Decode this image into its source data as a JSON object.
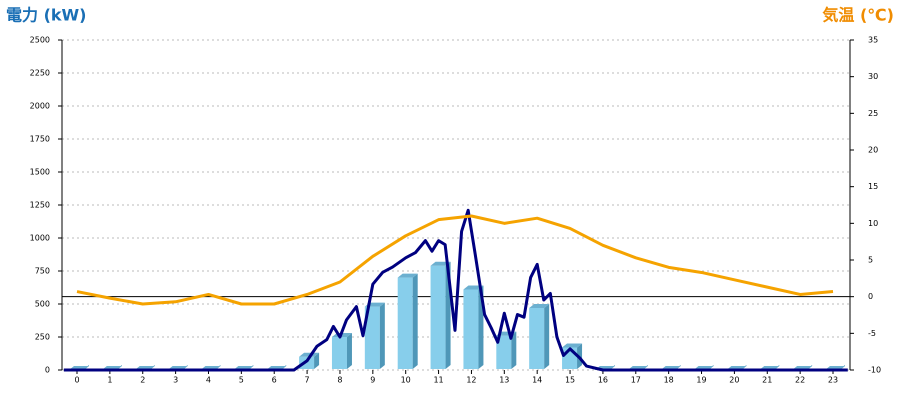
{
  "chart_data": {
    "type": "bar",
    "title": "電力 (kW)",
    "y2_title": "気温 (℃)",
    "categories": [
      "0",
      "1",
      "2",
      "3",
      "4",
      "5",
      "6",
      "7",
      "8",
      "9",
      "10",
      "11",
      "12",
      "13",
      "14",
      "15",
      "16",
      "17",
      "18",
      "19",
      "20",
      "21",
      "22",
      "23"
    ],
    "ylim": [
      0,
      2500
    ],
    "yticks": [
      0,
      250,
      500,
      750,
      1000,
      1250,
      1500,
      1750,
      2000,
      2250,
      2500
    ],
    "y2lim": [
      -10,
      35
    ],
    "y2ticks": [
      -10,
      -5,
      0,
      5,
      10,
      15,
      20,
      25,
      30,
      35
    ],
    "y2_reference": 0,
    "grid": true,
    "series": [
      {
        "type": "bar",
        "color": "#87ceeb",
        "values": [
          0,
          0,
          0,
          0,
          0,
          0,
          0,
          100,
          250,
          480,
          700,
          790,
          610,
          260,
          470,
          170,
          0,
          0,
          0,
          0,
          0,
          0,
          0,
          0
        ]
      },
      {
        "type": "line",
        "color": "#000080",
        "x": [
          -0.4,
          1,
          2,
          3,
          4,
          5,
          6,
          6.6,
          7.0,
          7.3,
          7.6,
          7.8,
          8.0,
          8.2,
          8.5,
          8.7,
          9.0,
          9.3,
          9.6,
          10.0,
          10.3,
          10.6,
          10.8,
          11.0,
          11.2,
          11.5,
          11.7,
          11.9,
          12.1,
          12.4,
          12.6,
          12.8,
          13.0,
          13.2,
          13.4,
          13.6,
          13.8,
          14.0,
          14.2,
          14.4,
          14.6,
          14.8,
          15.0,
          15.3,
          15.5,
          16.0,
          17,
          18,
          19,
          20,
          21,
          22,
          23,
          23.45
        ],
        "values": [
          0,
          0,
          0,
          0,
          0,
          0,
          0,
          0,
          70,
          180,
          230,
          330,
          250,
          380,
          480,
          260,
          650,
          740,
          780,
          850,
          890,
          980,
          900,
          980,
          950,
          300,
          1050,
          1210,
          900,
          420,
          320,
          210,
          430,
          240,
          420,
          400,
          700,
          800,
          530,
          580,
          250,
          110,
          160,
          90,
          30,
          0,
          0,
          0,
          0,
          0,
          0,
          0,
          0,
          0
        ]
      },
      {
        "type": "line",
        "axis": "y2",
        "color": "#f5a300",
        "values": [
          0.7,
          -0.2,
          -1,
          -0.7,
          0.3,
          -1,
          -1,
          0.3,
          2,
          5.5,
          8.3,
          10.5,
          11,
          10,
          10.7,
          9.3,
          7,
          5.3,
          4,
          3.3,
          2.3,
          1.3,
          0.3,
          0.7
        ]
      }
    ]
  }
}
